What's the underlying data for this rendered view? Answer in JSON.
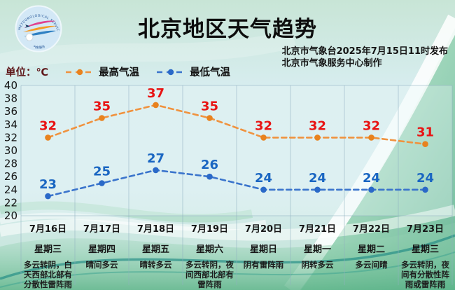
{
  "header": {
    "title": "北京地区天气趋势",
    "issuer_line1": "北京市气象台2025年7月15日11时发布",
    "issuer_line2": "北京市气象服务中心制作",
    "logo_arc_top": "METEOROLOGICAL SERVICE",
    "logo_arc_bottom": "气象服务"
  },
  "legend": {
    "unit_label": "单位：℃",
    "items": [
      {
        "label": "最高气温",
        "line_color": "#f0923e",
        "marker_color": "#e8821e"
      },
      {
        "label": "最低气温",
        "line_color": "#3a74cc",
        "marker_color": "#2a69c8"
      }
    ]
  },
  "chart_data": {
    "type": "line",
    "title": "北京地区天气趋势",
    "xlabel": "",
    "ylabel": "单位：℃",
    "ylim": [
      20,
      40
    ],
    "ytick_step": 2,
    "grid": "vertical-only",
    "legend_position": "top",
    "x": [
      "7月16日",
      "7月17日",
      "7月18日",
      "7月19日",
      "7月20日",
      "7月21日",
      "7月22日",
      "7月23日"
    ],
    "weekdays": [
      "星期三",
      "星期四",
      "星期五",
      "星期六",
      "星期日",
      "星期一",
      "星期二",
      "星期三"
    ],
    "series": [
      {
        "name": "最高气温",
        "values": [
          32,
          35,
          37,
          35,
          32,
          32,
          32,
          31
        ],
        "line_color": "#f0923e",
        "marker_color": "#e8821e",
        "label_color": "#e81414",
        "style": "dashed"
      },
      {
        "name": "最低气温",
        "values": [
          23,
          25,
          27,
          26,
          24,
          24,
          24,
          24
        ],
        "line_color": "#3a74cc",
        "marker_color": "#2a69c8",
        "label_color": "#1a66c2",
        "style": "dashed"
      }
    ],
    "descriptions": [
      "多云转阴，白天西部北部有分散性雷阵雨",
      "晴间多云",
      "晴转多云",
      "多云转阴，夜间西部北部有雷阵雨",
      "阴有雷阵雨",
      "阴转多云",
      "多云间晴",
      "多云转阴，夜间有分散性阵雨或雷阵雨"
    ]
  }
}
